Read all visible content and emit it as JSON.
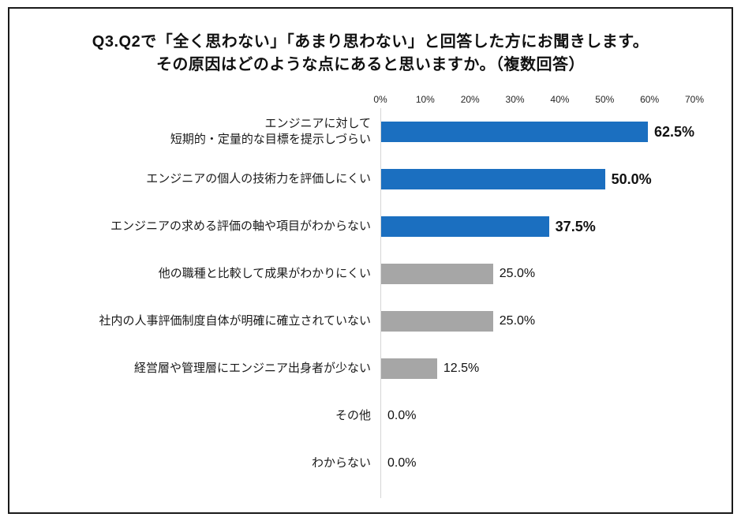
{
  "title": {
    "line1": "Q3.Q2で「全く思わない」「あまり思わない」と回答した方にお聞きします。",
    "line2": "その原因はどのような点にあると思いますか。（複数回答）"
  },
  "colors": {
    "bar_blue": "#1b6fc0",
    "bar_gray": "#a6a6a6",
    "axis_line": "#d6d6d6"
  },
  "chart_data": {
    "type": "bar",
    "orientation": "horizontal",
    "title": "Q3.Q2で「全く思わない」「あまり思わない」と回答した方にお聞きします。その原因はどのような点にあると思いますか。（複数回答）",
    "categories": [
      "エンジニアに対して\n短期的・定量的な目標を提示しづらい",
      "エンジニアの個人の技術力を評価しにくい",
      "エンジニアの求める評価の軸や項目がわからない",
      "他の職種と比較して成果がわかりにくい",
      "社内の人事評価制度自体が明確に確立されていない",
      "経営層や管理層にエンジニア出身者が少ない",
      "その他",
      "わからない"
    ],
    "values": [
      62.5,
      50.0,
      37.5,
      25.0,
      25.0,
      12.5,
      0.0,
      0.0
    ],
    "value_labels": [
      "62.5%",
      "50.0%",
      "37.5%",
      "25.0%",
      "25.0%",
      "12.5%",
      "0.0%",
      "0.0%"
    ],
    "bar_colors": [
      "#1b6fc0",
      "#1b6fc0",
      "#1b6fc0",
      "#a6a6a6",
      "#a6a6a6",
      "#a6a6a6",
      "#a6a6a6",
      "#a6a6a6"
    ],
    "axis_ticks": [
      "0%",
      "10%",
      "20%",
      "30%",
      "40%",
      "50%",
      "60%",
      "70%"
    ],
    "xlabel": "",
    "ylabel": "",
    "xlim": [
      0,
      70
    ],
    "grid": false,
    "legend": false
  }
}
